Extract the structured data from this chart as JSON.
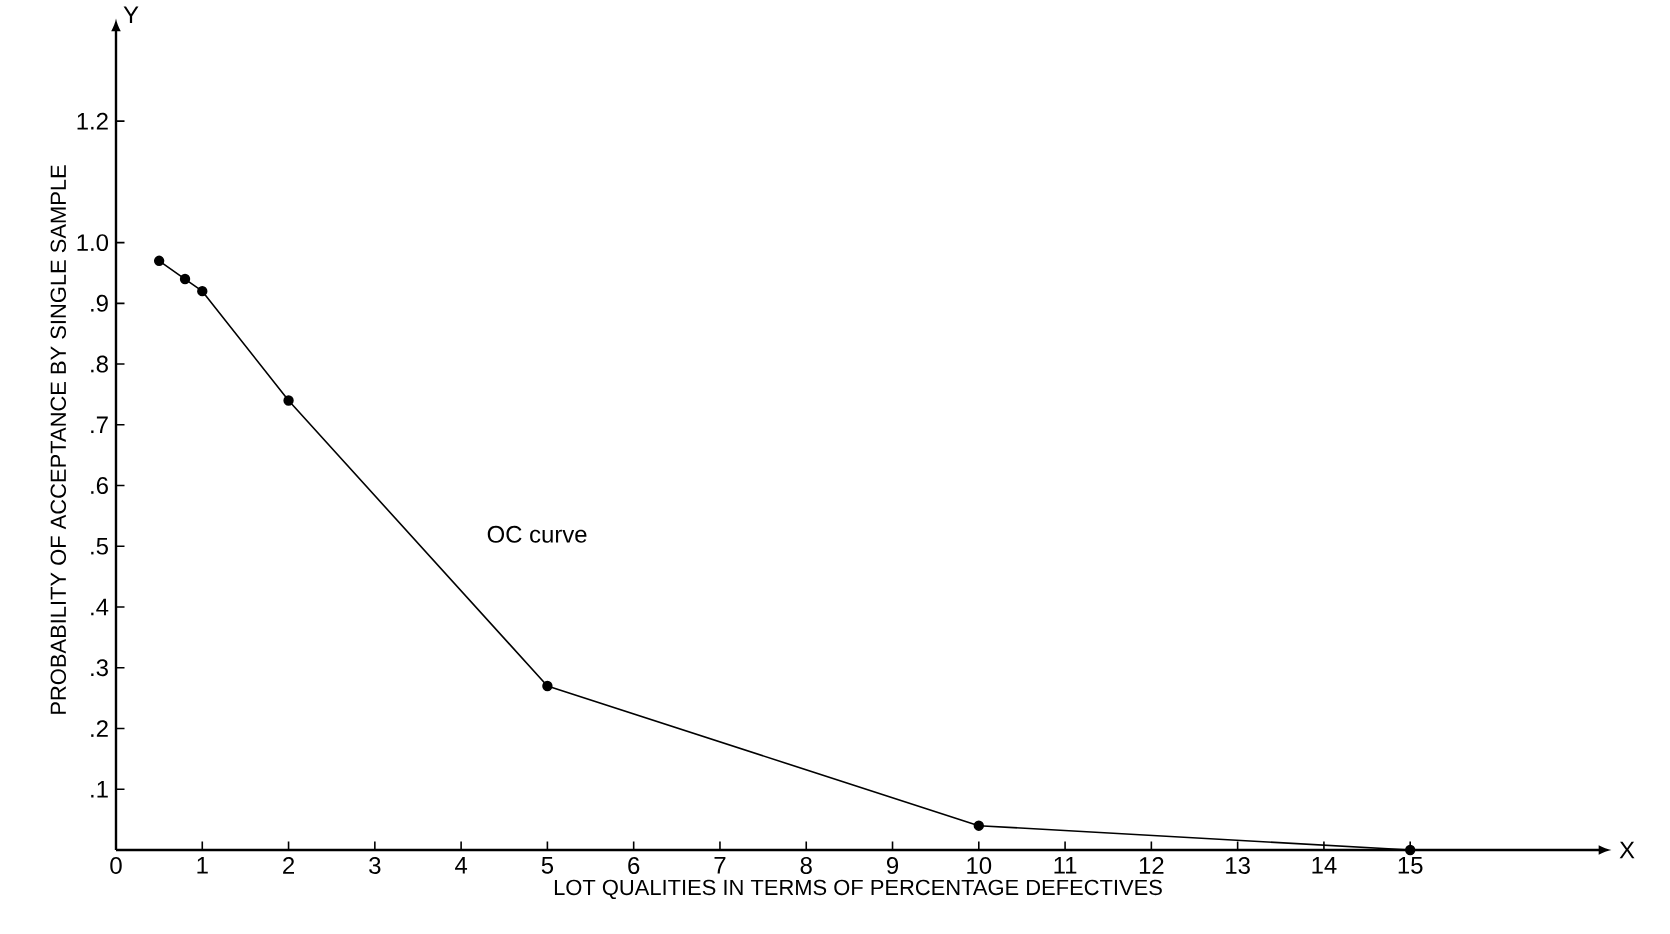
{
  "chart_data": {
    "type": "line",
    "xlabel": "LOT QUALITIES IN TERMS OF PERCENTAGE DEFECTIVES",
    "ylabel": "PROBABILITY OF ACCEPTANCE BY SINGLE SAMPLE",
    "x": [
      0.5,
      0.8,
      1,
      2,
      5,
      10,
      15
    ],
    "series": [
      {
        "color": "#000000",
        "values": [
          0.97,
          0.94,
          0.92,
          0.74,
          0.27,
          0.04,
          0
        ]
      }
    ],
    "xlim": [
      0,
      17.2
    ],
    "ylim": [
      0,
      1.35
    ],
    "xticks": [
      0,
      1,
      2,
      3,
      4,
      5,
      6,
      7,
      8,
      9,
      10,
      11,
      12,
      13,
      14,
      15
    ],
    "yticks": [
      {
        "value": 0.1,
        "label": ".1"
      },
      {
        "value": 0.2,
        "label": ".2"
      },
      {
        "value": 0.3,
        "label": ".3"
      },
      {
        "value": 0.4,
        "label": ".4"
      },
      {
        "value": 0.5,
        "label": ".5"
      },
      {
        "value": 0.6,
        "label": ".6"
      },
      {
        "value": 0.7,
        "label": ".7"
      },
      {
        "value": 0.8,
        "label": ".8"
      },
      {
        "value": 0.9,
        "label": ".9"
      },
      {
        "value": 1.0,
        "label": "1.0"
      },
      {
        "value": 1.2,
        "label": "1.2"
      }
    ],
    "annotations": [
      "OC curve",
      "X",
      "Y"
    ],
    "marker": "circle",
    "line_style": "solid",
    "grid": false
  }
}
